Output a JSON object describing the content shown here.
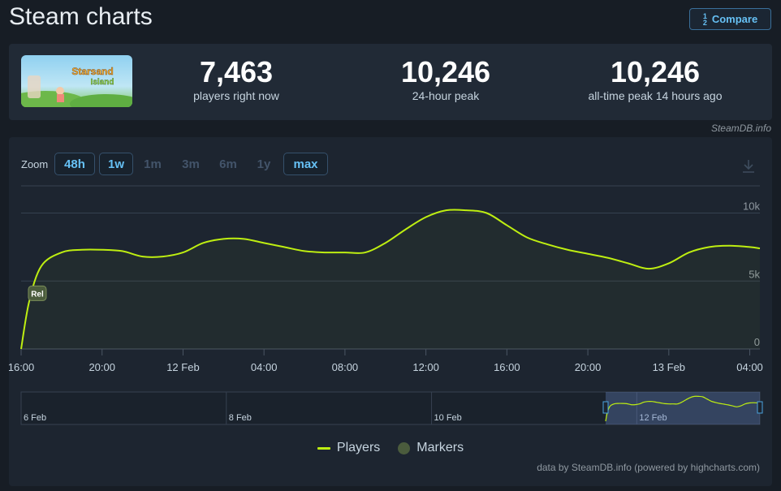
{
  "page_title": "Steam charts",
  "compare": {
    "label": "Compare",
    "icon": "fraction-icon",
    "fraction_top": "1",
    "fraction_bottom": "2",
    "fraction_right": "3"
  },
  "stats": {
    "game_logo_text": "Starsand Island",
    "players_now": {
      "value": "7,463",
      "label": "players right now"
    },
    "peak_24h": {
      "value": "10,246",
      "label": "24-hour peak"
    },
    "peak_all_time": {
      "value": "10,246",
      "label": "all-time peak 14 hours ago"
    }
  },
  "credit": "SteamDB.info",
  "zoom": {
    "label": "Zoom",
    "buttons": [
      {
        "label": "48h",
        "active": true
      },
      {
        "label": "1w",
        "active": true
      },
      {
        "label": "1m",
        "active": false
      },
      {
        "label": "3m",
        "active": false
      },
      {
        "label": "6m",
        "active": false
      },
      {
        "label": "1y",
        "active": false
      },
      {
        "label": "max",
        "active": true
      }
    ]
  },
  "chart_data": {
    "type": "area",
    "title": "",
    "xlabel": "",
    "ylabel": "",
    "ylim": [
      0,
      12000
    ],
    "yticks": [
      0,
      5000,
      10000
    ],
    "ytick_labels": [
      "0",
      "5k",
      "10k"
    ],
    "x_unit": "hours since 16:00 on 11 Feb",
    "xlim": [
      0,
      36.5
    ],
    "xticks": [
      0,
      4,
      8,
      12,
      16,
      20,
      24,
      28,
      32,
      36
    ],
    "xtick_labels": [
      "16:00",
      "20:00",
      "12 Feb",
      "04:00",
      "08:00",
      "12:00",
      "16:00",
      "20:00",
      "13 Feb",
      "04:00"
    ],
    "grid": true,
    "series": [
      {
        "name": "Players",
        "color": "#beee11",
        "x": [
          0,
          0.4,
          1,
          2,
          3,
          4,
          5,
          6,
          7,
          8,
          9,
          10,
          11,
          12,
          13,
          14,
          15,
          16,
          17,
          18,
          19,
          20,
          21,
          22,
          23,
          24,
          25,
          26,
          27,
          28,
          29,
          30,
          31,
          32,
          33,
          34,
          35,
          36,
          36.5
        ],
        "y": [
          0,
          3500,
          6100,
          7100,
          7300,
          7300,
          7200,
          6800,
          6800,
          7100,
          7800,
          8100,
          8100,
          7800,
          7500,
          7200,
          7100,
          7100,
          7100,
          7800,
          8800,
          9700,
          10200,
          10200,
          10000,
          9100,
          8200,
          7700,
          7300,
          7000,
          6700,
          6300,
          5900,
          6300,
          7100,
          7500,
          7600,
          7500,
          7400
        ]
      }
    ],
    "markers": [
      {
        "x": 0.4,
        "label": "Rel"
      }
    ],
    "navigator": {
      "labels": [
        "6 Feb",
        "8 Feb",
        "10 Feb",
        "12 Feb"
      ],
      "label_days": [
        0,
        2,
        4,
        6
      ]
    }
  },
  "legend": [
    {
      "label": "Players",
      "symbol": "line",
      "color": "#beee11"
    },
    {
      "label": "Markers",
      "symbol": "dot",
      "color": "#4b5c3d"
    }
  ],
  "footer_credit": "data by SteamDB.info (powered by highcharts.com)"
}
